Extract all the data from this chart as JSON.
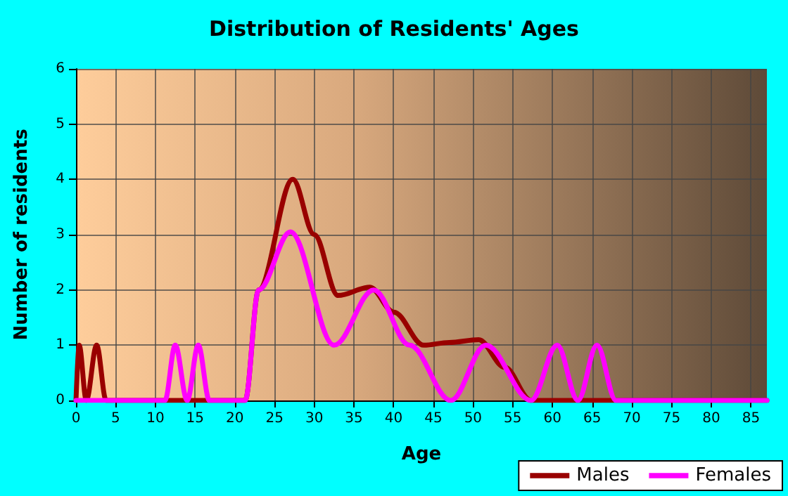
{
  "chart_data": {
    "type": "line",
    "title": "Distribution of Residents' Ages",
    "xlabel": "Age",
    "ylabel": "Number of residents",
    "xlim": [
      0,
      87
    ],
    "xticks": [
      0,
      5,
      10,
      15,
      20,
      25,
      30,
      35,
      40,
      45,
      50,
      55,
      60,
      65,
      70,
      75,
      80,
      85
    ],
    "ylim": [
      0,
      6
    ],
    "yticks": [
      0,
      1,
      2,
      3,
      4,
      5,
      6
    ],
    "grid": true,
    "legend": "bottom right",
    "marker": "none",
    "line_style": "solid",
    "series": [
      {
        "name": "Males",
        "color": "#990000",
        "x": [
          0,
          0.4,
          1.3,
          2.6,
          3.8,
          10,
          20,
          21.3,
          23,
          27.3,
          30,
          33,
          37,
          40,
          43.8,
          47,
          50.7,
          54,
          57.3,
          60,
          70,
          87
        ],
        "values": [
          0,
          1,
          0,
          1,
          0,
          0,
          0,
          0,
          2,
          4,
          3,
          1.9,
          2.05,
          1.6,
          1,
          1.05,
          1.1,
          0.6,
          0,
          0,
          0,
          0
        ]
      },
      {
        "name": "Females",
        "color": "#ff00ff",
        "x": [
          0,
          5,
          11.2,
          12.5,
          14,
          15.4,
          16.8,
          20,
          21.3,
          23,
          27,
          32.5,
          37.5,
          42,
          47.2,
          51.6,
          57.3,
          60.6,
          63.2,
          65.6,
          68,
          75,
          87
        ],
        "values": [
          0,
          0,
          0,
          1,
          0,
          1,
          0,
          0,
          0,
          2,
          3.05,
          1,
          2,
          1,
          0,
          1,
          0,
          1,
          0,
          1,
          0,
          0,
          0
        ]
      }
    ]
  }
}
